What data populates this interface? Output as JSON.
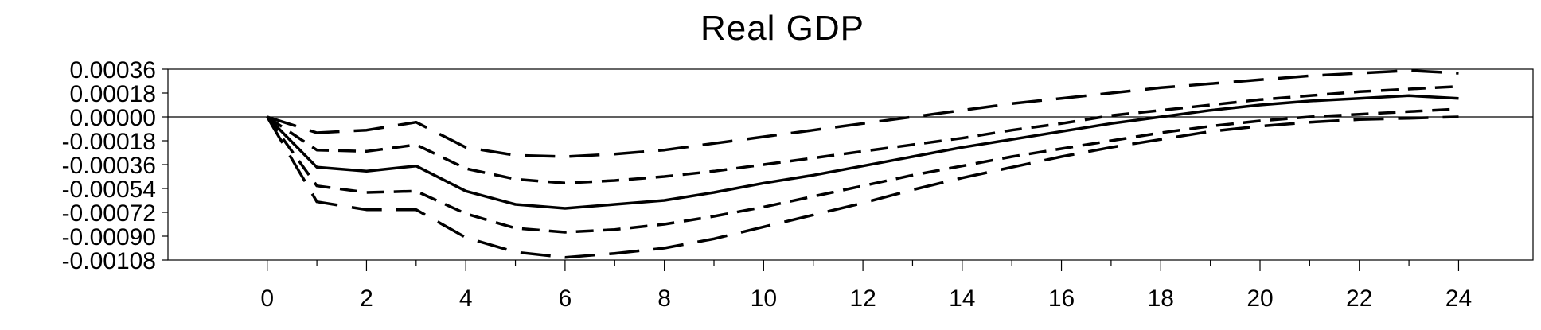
{
  "chart_data": {
    "type": "line",
    "title": "Real GDP",
    "xlabel": "",
    "ylabel": "",
    "xlim": [
      -2,
      25.5
    ],
    "ylim": [
      -0.00108,
      0.00036
    ],
    "x_ticks": [
      0,
      2,
      4,
      6,
      8,
      10,
      12,
      14,
      16,
      18,
      20,
      22,
      24
    ],
    "x_tick_labels": [
      "0",
      "2",
      "4",
      "6",
      "8",
      "10",
      "12",
      "14",
      "16",
      "18",
      "20",
      "22",
      "24"
    ],
    "y_ticks": [
      0.00036,
      0.00018,
      0.0,
      -0.00018,
      -0.00036,
      -0.00054,
      -0.00072,
      -0.0009,
      -0.00108
    ],
    "y_tick_labels": [
      "0.00036",
      "0.00018",
      "0.00000",
      "-0.00018",
      "-0.00036",
      "-0.00054",
      "-0.00072",
      "-0.00090",
      "-0.00108"
    ],
    "zero_line": true,
    "grid": false,
    "legend": "none",
    "x": [
      0,
      1,
      2,
      3,
      4,
      5,
      6,
      7,
      8,
      9,
      10,
      11,
      12,
      13,
      14,
      15,
      16,
      17,
      18,
      19,
      20,
      21,
      22,
      23,
      24
    ],
    "series": [
      {
        "style": "long-dash",
        "values": [
          0,
          -0.00012,
          -0.0001,
          -4e-05,
          -0.00023,
          -0.00029,
          -0.0003,
          -0.00028,
          -0.00025,
          -0.0002,
          -0.00015,
          -0.0001,
          -5e-05,
          0.0,
          5e-05,
          0.0001,
          0.00014,
          0.00018,
          0.00022,
          0.00025,
          0.00028,
          0.00031,
          0.00033,
          0.00035,
          0.00033
        ]
      },
      {
        "style": "short-dash",
        "values": [
          0,
          -0.00025,
          -0.00026,
          -0.00021,
          -0.00039,
          -0.00047,
          -0.0005,
          -0.00048,
          -0.00045,
          -0.00041,
          -0.00036,
          -0.00031,
          -0.00026,
          -0.00021,
          -0.00016,
          -0.0001,
          -5e-05,
          1e-05,
          5e-05,
          9e-05,
          0.00013,
          0.00016,
          0.00019,
          0.00021,
          0.00023
        ]
      },
      {
        "style": "solid",
        "values": [
          0,
          -0.00038,
          -0.00041,
          -0.00037,
          -0.00056,
          -0.00066,
          -0.00069,
          -0.00066,
          -0.00063,
          -0.00057,
          -0.0005,
          -0.00044,
          -0.00037,
          -0.0003,
          -0.00023,
          -0.00017,
          -0.00011,
          -5e-05,
          0.0,
          5e-05,
          9e-05,
          0.00012,
          0.00014,
          0.00016,
          0.00014
        ]
      },
      {
        "style": "short-dash",
        "values": [
          0,
          -0.00052,
          -0.00057,
          -0.00056,
          -0.00073,
          -0.00084,
          -0.00087,
          -0.00085,
          -0.00081,
          -0.00075,
          -0.00068,
          -0.0006,
          -0.00052,
          -0.00044,
          -0.00037,
          -0.0003,
          -0.00024,
          -0.00018,
          -0.00012,
          -7e-05,
          -3e-05,
          0.0,
          2e-05,
          4e-05,
          6e-05
        ]
      },
      {
        "style": "long-dash",
        "values": [
          0,
          -0.00064,
          -0.0007,
          -0.0007,
          -0.00091,
          -0.00102,
          -0.00106,
          -0.00103,
          -0.00099,
          -0.00092,
          -0.00083,
          -0.00074,
          -0.00065,
          -0.00055,
          -0.00046,
          -0.00038,
          -0.0003,
          -0.00023,
          -0.00017,
          -0.00011,
          -7e-05,
          -4e-05,
          -2e-05,
          -1e-05,
          0.0
        ]
      }
    ]
  }
}
